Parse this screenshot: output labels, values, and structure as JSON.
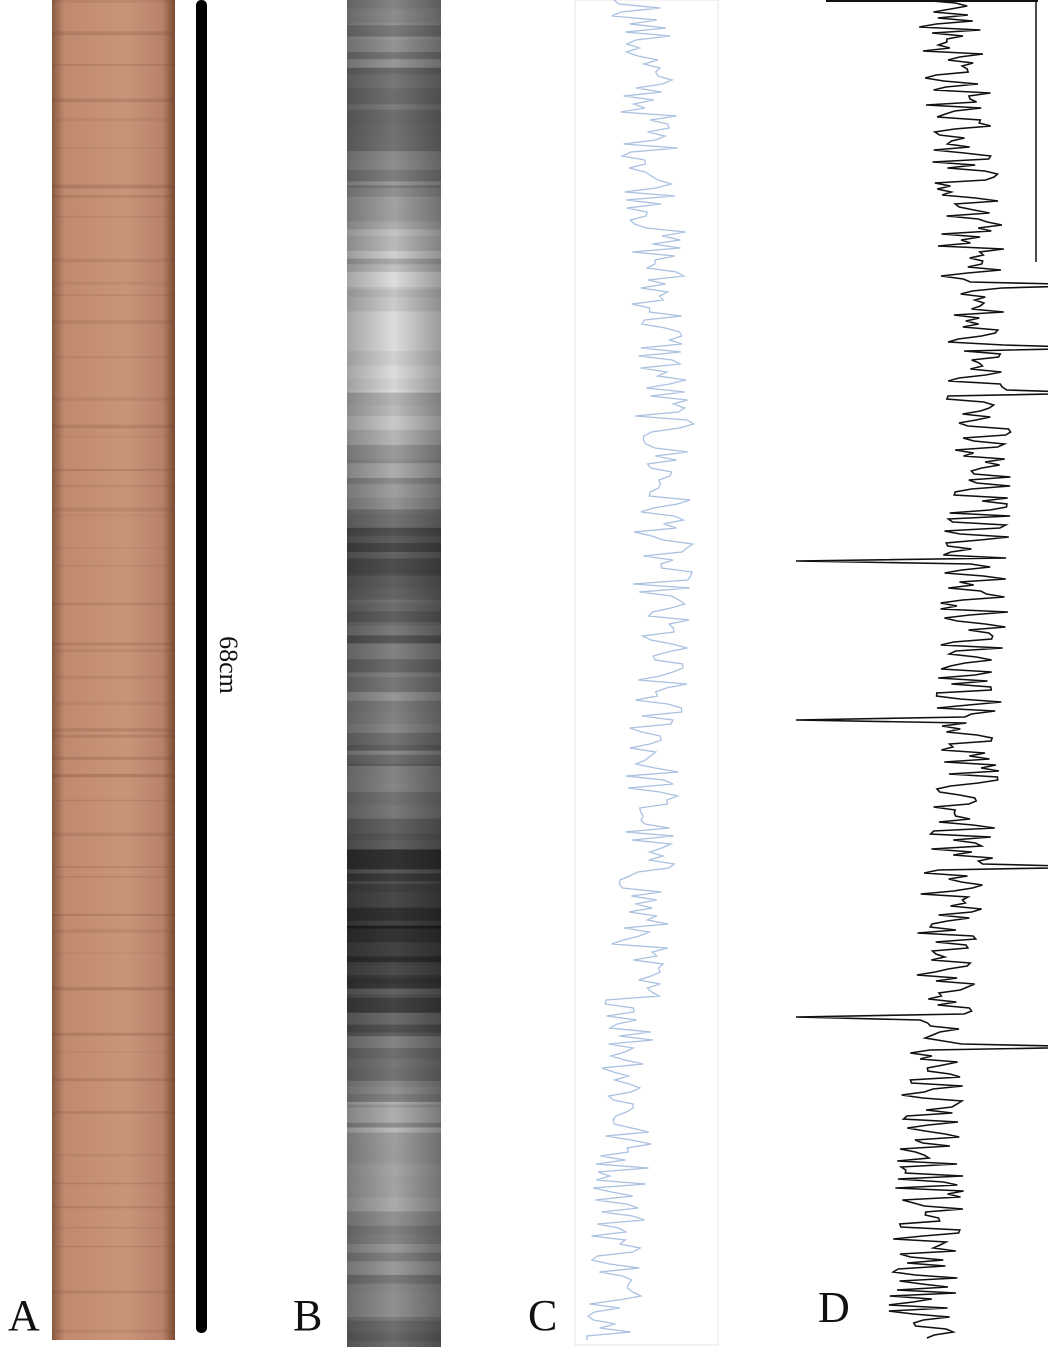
{
  "panels": [
    {
      "label": "A"
    },
    {
      "label": "B"
    },
    {
      "label": "C"
    },
    {
      "label": "D"
    }
  ],
  "scale_bar": {
    "label": "68cm"
  }
}
